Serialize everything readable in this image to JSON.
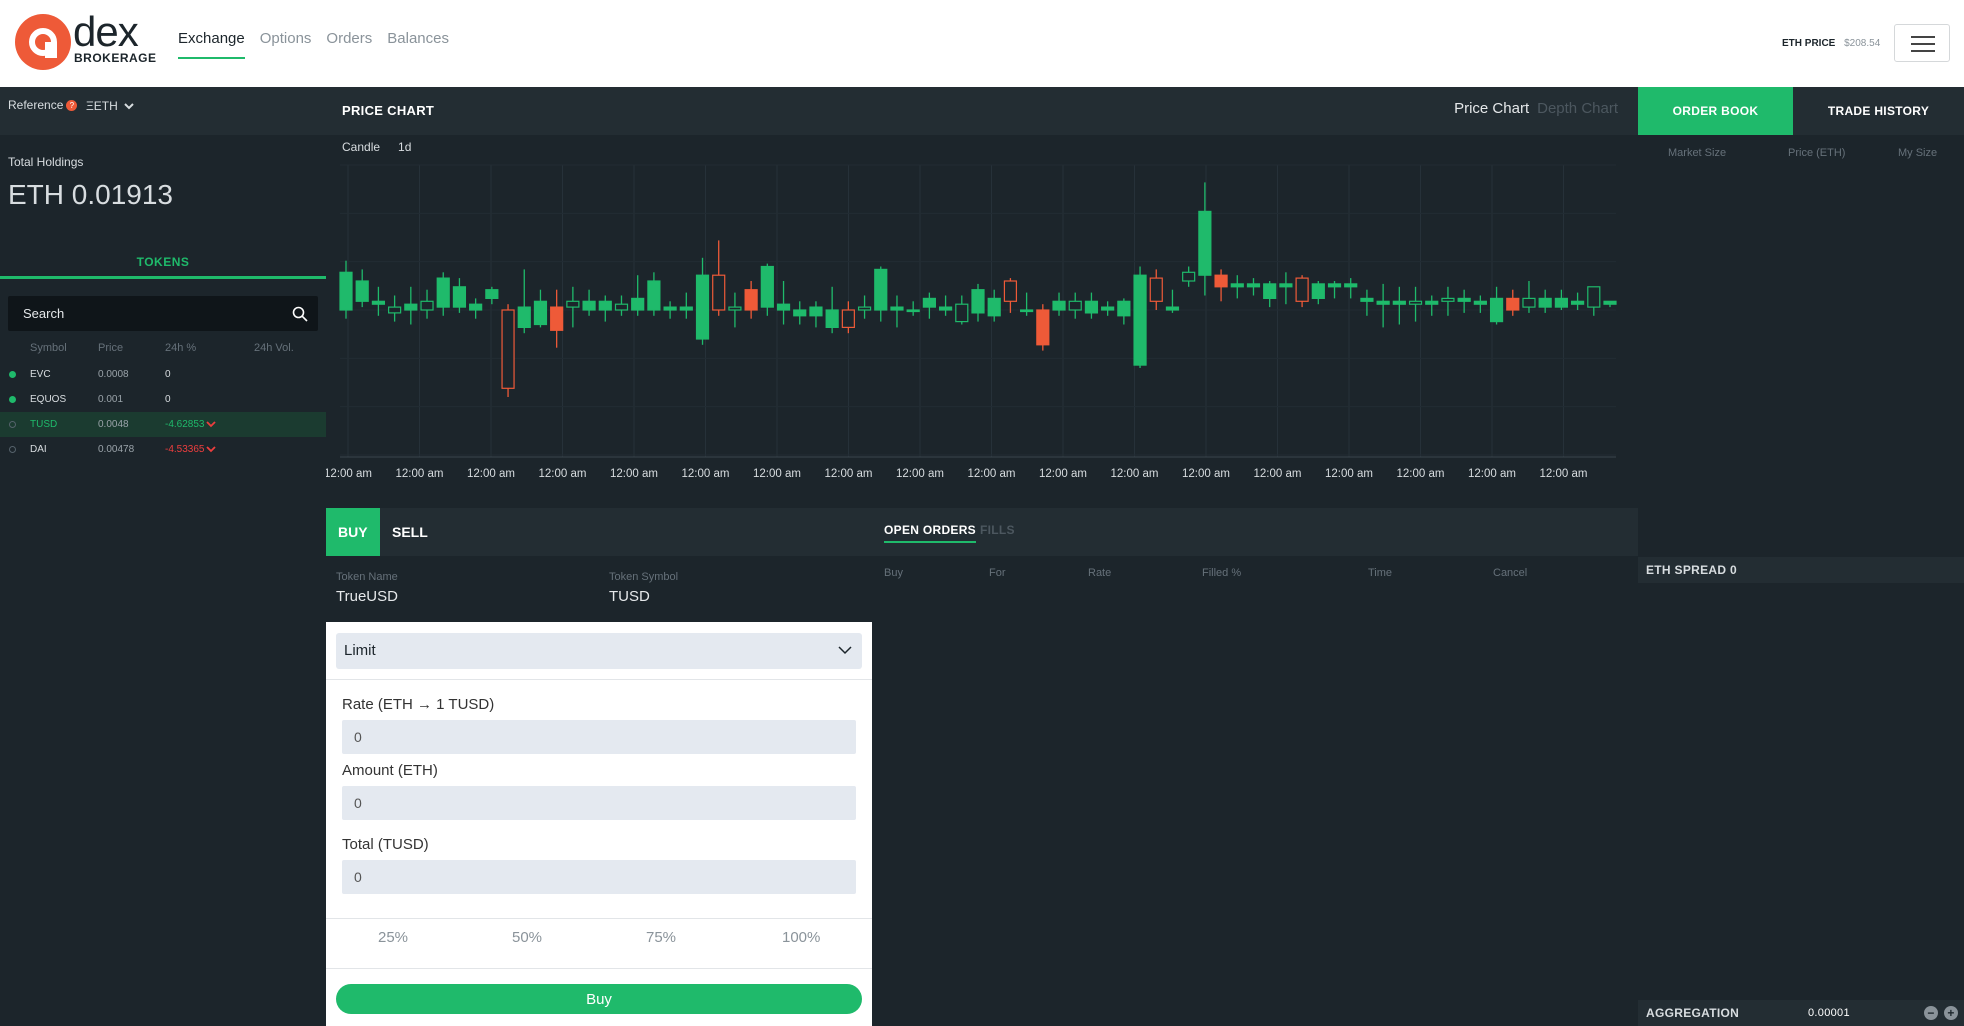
{
  "header": {
    "logo_word": "dex",
    "logo_sub": "BROKERAGE",
    "nav": [
      {
        "label": "Exchange",
        "active": true
      },
      {
        "label": "Options",
        "active": false
      },
      {
        "label": "Orders",
        "active": false
      },
      {
        "label": "Balances",
        "active": false
      }
    ],
    "eth_price_label": "ETH PRICE",
    "eth_price_value": "$208.54",
    "menu_icon": "hamburger-icon"
  },
  "sidebar": {
    "reference_label": "Reference",
    "reference_value": "ΞETH",
    "holdings_label": "Total Holdings",
    "holdings_value": "ETH 0.01913",
    "tokens_tab": "TOKENS",
    "search_placeholder": "Search",
    "columns": [
      "Symbol",
      "Price",
      "24h %",
      "24h Vol."
    ],
    "tokens": [
      {
        "symbol": "EVC",
        "price": "0.0008",
        "change": "0",
        "vol": "",
        "dot": "filled",
        "trend": "none",
        "selected": false
      },
      {
        "symbol": "EQUOS",
        "price": "0.001",
        "change": "0",
        "vol": "",
        "dot": "filled",
        "trend": "none",
        "selected": false
      },
      {
        "symbol": "TUSD",
        "price": "0.0048",
        "change": "-4.62853",
        "vol": "",
        "dot": "hollow",
        "trend": "down",
        "selected": true
      },
      {
        "symbol": "DAI",
        "price": "0.00478",
        "change": "-4.53365",
        "vol": "",
        "dot": "hollow",
        "trend": "down",
        "selected": false
      }
    ]
  },
  "chart_panel": {
    "title": "PRICE CHART",
    "view_active": "Price Chart",
    "view_inactive": "Depth Chart",
    "candle_label": "Candle",
    "interval": "1d"
  },
  "chart_data": {
    "type": "candlestick",
    "x_ticks": [
      "12:00 am",
      "12:00 am",
      "12:00 am",
      "12:00 am",
      "12:00 am",
      "12:00 am",
      "12:00 am",
      "12:00 am",
      "12:00 am",
      "12:00 am",
      "12:00 am",
      "12:00 am",
      "12:00 am",
      "12:00 am",
      "12:00 am",
      "12:00 am",
      "12:00 am",
      "12:00 am"
    ],
    "ylim": [
      0,
      100
    ],
    "colors": {
      "up": "#1fba6b",
      "down": "#ee5a38"
    },
    "candles": [
      {
        "o": 50,
        "c": 63,
        "h": 67,
        "l": 47
      },
      {
        "o": 53,
        "c": 60,
        "h": 64,
        "l": 51
      },
      {
        "o": 52,
        "c": 53,
        "h": 58,
        "l": 48
      },
      {
        "o": 49,
        "c": 51,
        "h": 55,
        "l": 46
      },
      {
        "o": 50,
        "c": 52,
        "h": 58,
        "l": 45
      },
      {
        "o": 50,
        "c": 53,
        "h": 57,
        "l": 47
      },
      {
        "o": 51,
        "c": 61,
        "h": 63,
        "l": 48
      },
      {
        "o": 51,
        "c": 58,
        "h": 61,
        "l": 49
      },
      {
        "o": 50,
        "c": 52,
        "h": 54,
        "l": 47
      },
      {
        "o": 54,
        "c": 57,
        "h": 58,
        "l": 52
      },
      {
        "o": 50,
        "c": 23,
        "h": 52,
        "l": 20
      },
      {
        "o": 44,
        "c": 51,
        "h": 64,
        "l": 42
      },
      {
        "o": 45,
        "c": 53,
        "h": 57,
        "l": 44
      },
      {
        "o": 51,
        "c": 43,
        "h": 57,
        "l": 37
      },
      {
        "o": 51,
        "c": 53,
        "h": 58,
        "l": 44
      },
      {
        "o": 50,
        "c": 53,
        "h": 57,
        "l": 48
      },
      {
        "o": 50,
        "c": 53,
        "h": 55,
        "l": 46
      },
      {
        "o": 50,
        "c": 52,
        "h": 55,
        "l": 48
      },
      {
        "o": 50,
        "c": 54,
        "h": 62,
        "l": 48
      },
      {
        "o": 50,
        "c": 60,
        "h": 63,
        "l": 48
      },
      {
        "o": 50,
        "c": 51,
        "h": 53,
        "l": 47
      },
      {
        "o": 50,
        "c": 51,
        "h": 56,
        "l": 47
      },
      {
        "o": 40,
        "c": 62,
        "h": 68,
        "l": 38
      },
      {
        "o": 62,
        "c": 50,
        "h": 74,
        "l": 48
      },
      {
        "o": 50,
        "c": 51,
        "h": 56,
        "l": 44
      },
      {
        "o": 57,
        "c": 50,
        "h": 60,
        "l": 47
      },
      {
        "o": 51,
        "c": 65,
        "h": 66,
        "l": 48
      },
      {
        "o": 50,
        "c": 52,
        "h": 60,
        "l": 45
      },
      {
        "o": 48,
        "c": 50,
        "h": 53,
        "l": 45
      },
      {
        "o": 48,
        "c": 51,
        "h": 53,
        "l": 44
      },
      {
        "o": 44,
        "c": 50,
        "h": 58,
        "l": 42
      },
      {
        "o": 50,
        "c": 44,
        "h": 53,
        "l": 42
      },
      {
        "o": 50,
        "c": 51,
        "h": 55,
        "l": 47
      },
      {
        "o": 50,
        "c": 64,
        "h": 65,
        "l": 46
      },
      {
        "o": 50,
        "c": 51,
        "h": 55,
        "l": 44
      },
      {
        "o": 50,
        "c": 50,
        "h": 53,
        "l": 48
      },
      {
        "o": 51,
        "c": 54,
        "h": 56,
        "l": 47
      },
      {
        "o": 50,
        "c": 51,
        "h": 55,
        "l": 48
      },
      {
        "o": 46,
        "c": 52,
        "h": 55,
        "l": 45
      },
      {
        "o": 49,
        "c": 57,
        "h": 59,
        "l": 46
      },
      {
        "o": 48,
        "c": 54,
        "h": 57,
        "l": 46
      },
      {
        "o": 60,
        "c": 53,
        "h": 61,
        "l": 49
      },
      {
        "o": 50,
        "c": 50,
        "h": 56,
        "l": 48
      },
      {
        "o": 50,
        "c": 38,
        "h": 52,
        "l": 36
      },
      {
        "o": 50,
        "c": 53,
        "h": 56,
        "l": 48
      },
      {
        "o": 50,
        "c": 53,
        "h": 56,
        "l": 47
      },
      {
        "o": 49,
        "c": 53,
        "h": 56,
        "l": 47
      },
      {
        "o": 50,
        "c": 51,
        "h": 53,
        "l": 48
      },
      {
        "o": 48,
        "c": 53,
        "h": 54,
        "l": 45
      },
      {
        "o": 31,
        "c": 62,
        "h": 65,
        "l": 30
      },
      {
        "o": 61,
        "c": 53,
        "h": 64,
        "l": 50
      },
      {
        "o": 50,
        "c": 51,
        "h": 57,
        "l": 49
      },
      {
        "o": 60,
        "c": 63,
        "h": 65,
        "l": 58
      },
      {
        "o": 62,
        "c": 84,
        "h": 94,
        "l": 55
      },
      {
        "o": 62,
        "c": 58,
        "h": 64,
        "l": 53
      },
      {
        "o": 58,
        "c": 59,
        "h": 62,
        "l": 54
      },
      {
        "o": 58,
        "c": 59,
        "h": 61,
        "l": 55
      },
      {
        "o": 54,
        "c": 59,
        "h": 60,
        "l": 51
      },
      {
        "o": 58,
        "c": 59,
        "h": 63,
        "l": 52
      },
      {
        "o": 61,
        "c": 53,
        "h": 62,
        "l": 51
      },
      {
        "o": 54,
        "c": 59,
        "h": 60,
        "l": 52
      },
      {
        "o": 58,
        "c": 59,
        "h": 60,
        "l": 54
      },
      {
        "o": 58,
        "c": 59,
        "h": 61,
        "l": 54
      },
      {
        "o": 53,
        "c": 54,
        "h": 57,
        "l": 48
      },
      {
        "o": 52,
        "c": 53,
        "h": 59,
        "l": 44
      },
      {
        "o": 52,
        "c": 53,
        "h": 58,
        "l": 45
      },
      {
        "o": 52,
        "c": 53,
        "h": 58,
        "l": 46
      },
      {
        "o": 52,
        "c": 53,
        "h": 55,
        "l": 48
      },
      {
        "o": 53,
        "c": 54,
        "h": 58,
        "l": 48
      },
      {
        "o": 53,
        "c": 54,
        "h": 57,
        "l": 49
      },
      {
        "o": 52,
        "c": 53,
        "h": 55,
        "l": 49
      },
      {
        "o": 46,
        "c": 54,
        "h": 58,
        "l": 45
      },
      {
        "o": 54,
        "c": 50,
        "h": 57,
        "l": 48
      },
      {
        "o": 51,
        "c": 54,
        "h": 60,
        "l": 49
      },
      {
        "o": 51,
        "c": 54,
        "h": 57,
        "l": 49
      },
      {
        "o": 51,
        "c": 54,
        "h": 57,
        "l": 50
      },
      {
        "o": 52,
        "c": 53,
        "h": 56,
        "l": 50
      },
      {
        "o": 51,
        "c": 58,
        "h": 58,
        "l": 48
      },
      {
        "o": 52,
        "c": 53,
        "h": 53,
        "l": 51
      }
    ]
  },
  "order_form": {
    "tabs": {
      "buy": "BUY",
      "sell": "SELL"
    },
    "token_name_label": "Token Name",
    "token_name": "TrueUSD",
    "token_symbol_label": "Token Symbol",
    "token_symbol": "TUSD",
    "order_type": "Limit",
    "rate_label": "Rate (ETH → 1 TUSD)",
    "rate_value": "0",
    "amount_label": "Amount (ETH)",
    "amount_value": "0",
    "total_label": "Total (TUSD)",
    "total_value": "0",
    "percents": [
      "25%",
      "50%",
      "75%",
      "100%"
    ],
    "submit": "Buy"
  },
  "open_orders": {
    "tab_active": "OPEN ORDERS",
    "tab_inactive": "FILLS",
    "columns": [
      "Buy",
      "For",
      "Rate",
      "Filled %",
      "Time",
      "Cancel"
    ]
  },
  "order_book": {
    "tab_active": "ORDER BOOK",
    "tab_inactive": "TRADE HISTORY",
    "columns": [
      "Market Size",
      "Price (ETH)",
      "My Size"
    ],
    "spread": "ETH SPREAD 0",
    "aggregation_label": "AGGREGATION",
    "aggregation_value": "0.00001"
  }
}
